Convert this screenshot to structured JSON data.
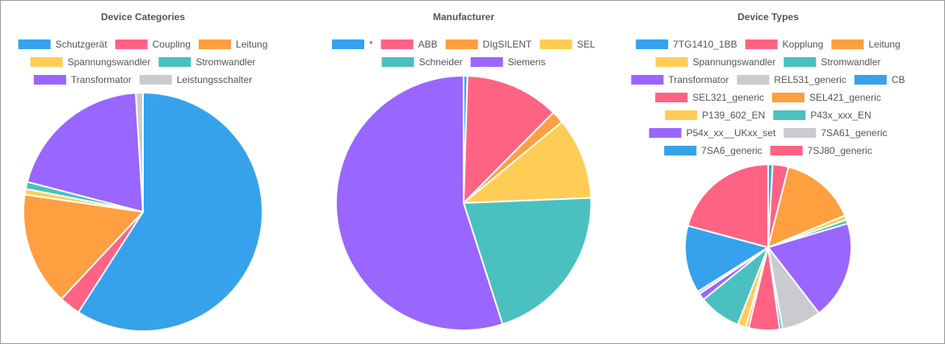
{
  "chart_data": [
    {
      "type": "pie",
      "title": "Device Categories",
      "legend_position": "top",
      "categories": [
        "Schutzgerät",
        "Coupling",
        "Leitung",
        "Spannungswandler",
        "Stromwandler",
        "Transformator",
        "Leistungsschalter"
      ],
      "values": [
        61.5,
        3.0,
        16.0,
        0.8,
        1.0,
        20.8,
        1.0
      ],
      "colors": [
        "#36a2eb",
        "#ff6384",
        "#ff9f40",
        "#ffcd56",
        "#4bc0c0",
        "#9966ff",
        "#c9cbcf"
      ]
    },
    {
      "type": "pie",
      "title": "Manufacturer",
      "legend_position": "top",
      "categories": [
        "*",
        "ABB",
        "DIgSILENT",
        "SEL",
        "Schneider",
        "Siemens"
      ],
      "values": [
        0.3,
        7.5,
        1.0,
        6.5,
        13.0,
        34.5
      ],
      "colors": [
        "#36a2eb",
        "#ff6384",
        "#ff9f40",
        "#ffcd56",
        "#4bc0c0",
        "#9966ff"
      ]
    },
    {
      "type": "pie",
      "title": "Device Types",
      "legend_position": "top",
      "categories": [
        "7TG1410_1BB",
        "Kopplung",
        "Leitung",
        "Spannungswandler",
        "Stromwandler",
        "Transformator",
        "REL531_generic",
        "CB",
        "SEL321_generic",
        "SEL421_generic",
        "P139_602_EN",
        "P43x_xxx_EN",
        "P54x_xx__UKxx_set",
        "7SA61_generic",
        "7SA6_generic",
        "7SJ80_generic"
      ],
      "values": [
        0.8,
        2.8,
        13.5,
        0.8,
        0.7,
        17.5,
        7.0,
        0.5,
        5.5,
        0.5,
        1.5,
        7.5,
        1.2,
        0.5,
        12.0,
        19.0
      ],
      "colors": [
        "#36a2eb",
        "#ff6384",
        "#ff9f40",
        "#ffcd56",
        "#4bc0c0",
        "#9966ff",
        "#c9cbcf",
        "#36a2eb",
        "#ff6384",
        "#ff9f40",
        "#ffcd56",
        "#4bc0c0",
        "#9966ff",
        "#c9cbcf",
        "#36a2eb",
        "#ff6384"
      ]
    }
  ]
}
